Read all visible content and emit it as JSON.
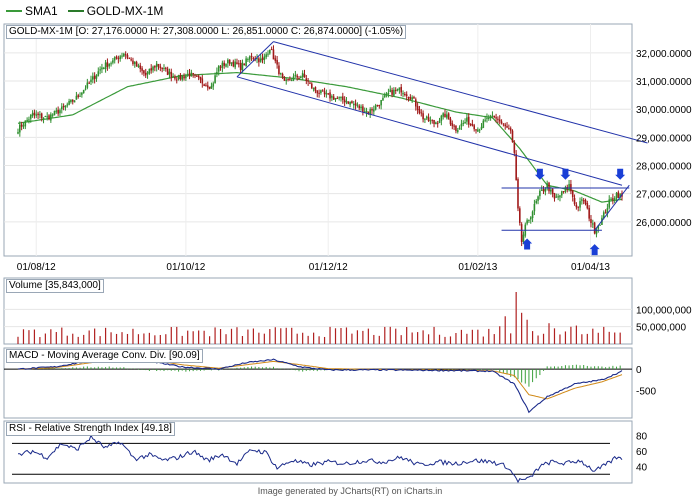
{
  "legend": {
    "items": [
      {
        "label": "SMA1",
        "color": "#3a9a3a"
      },
      {
        "label": "GOLD-MX-1M",
        "color": "#2a7a2a"
      }
    ]
  },
  "panels": {
    "price": {
      "title": "GOLD-MX-1M [O: 27,176.0000  H: 27,308.0000  L: 26,851.0000  C: 26,874.0000] (-1.05%)"
    },
    "volume": {
      "title": "Volume [35,843,000]"
    },
    "macd": {
      "title": "MACD - Moving Average Conv. Div. [90.09]"
    },
    "rsi": {
      "title": "RSI - Relative Strength Index [49.18]"
    }
  },
  "footer": "Image generated by JCharts(RT) on iCharts.in",
  "colors": {
    "up": "#2f8f2f",
    "down": "#a01818",
    "sma": "#3a9a3a",
    "channel": "#2233aa",
    "arrow": "#1a3fd6",
    "volume": "#b02020",
    "macd_line": "#1a2a8a",
    "macd_signal": "#d18a18",
    "macd_hist": "#3aa03a",
    "rsi_line": "#1a2a8a"
  },
  "chart_data": [
    {
      "type": "candlestick",
      "name": "price",
      "x_tick_labels": [
        "01/08/12",
        "01/10/12",
        "01/12/12",
        "01/02/13",
        "01/04/13"
      ],
      "y_tick_labels": [
        "32,000.0000",
        "31,000.0000",
        "30,000.0000",
        "29,000.0000",
        "28,000.0000",
        "27,000.0000",
        "26,000.0000"
      ],
      "ylim": [
        25000,
        32600
      ],
      "anchors_close": [
        [
          0,
          29300
        ],
        [
          8,
          29800
        ],
        [
          16,
          29700
        ],
        [
          24,
          30000
        ],
        [
          32,
          30400
        ],
        [
          40,
          31000
        ],
        [
          46,
          31500
        ],
        [
          52,
          31700
        ],
        [
          58,
          32000
        ],
        [
          64,
          31600
        ],
        [
          70,
          31200
        ],
        [
          76,
          31600
        ],
        [
          82,
          31300
        ],
        [
          88,
          31100
        ],
        [
          94,
          31250
        ],
        [
          100,
          31000
        ],
        [
          106,
          30800
        ],
        [
          110,
          31500
        ],
        [
          116,
          31700
        ],
        [
          122,
          31500
        ],
        [
          128,
          31900
        ],
        [
          134,
          31700
        ],
        [
          138,
          32200
        ],
        [
          142,
          31500
        ],
        [
          146,
          30900
        ],
        [
          150,
          31100
        ],
        [
          156,
          31200
        ],
        [
          162,
          30700
        ],
        [
          168,
          30500
        ],
        [
          174,
          30400
        ],
        [
          180,
          30300
        ],
        [
          186,
          30100
        ],
        [
          192,
          29900
        ],
        [
          198,
          30200
        ],
        [
          204,
          30600
        ],
        [
          210,
          30700
        ],
        [
          216,
          30400
        ],
        [
          222,
          29700
        ],
        [
          228,
          29500
        ],
        [
          234,
          29800
        ],
        [
          240,
          29300
        ],
        [
          246,
          29600
        ],
        [
          252,
          29300
        ],
        [
          258,
          29700
        ],
        [
          264,
          29600
        ],
        [
          270,
          29200
        ],
        [
          272,
          28400
        ],
        [
          274,
          26400
        ],
        [
          276,
          25300
        ],
        [
          278,
          25800
        ],
        [
          282,
          26400
        ],
        [
          286,
          27000
        ],
        [
          290,
          27300
        ],
        [
          294,
          26800
        ],
        [
          298,
          27000
        ],
        [
          302,
          27300
        ],
        [
          306,
          26500
        ],
        [
          310,
          26800
        ],
        [
          314,
          26000
        ],
        [
          316,
          25700
        ],
        [
          320,
          26100
        ],
        [
          324,
          26700
        ],
        [
          328,
          27000
        ],
        [
          331,
          26874
        ]
      ],
      "sma_anchors": [
        [
          0,
          29500
        ],
        [
          30,
          29800
        ],
        [
          60,
          30800
        ],
        [
          90,
          31200
        ],
        [
          120,
          31300
        ],
        [
          150,
          31100
        ],
        [
          180,
          30800
        ],
        [
          210,
          30400
        ],
        [
          240,
          29900
        ],
        [
          260,
          29700
        ],
        [
          275,
          28600
        ],
        [
          290,
          27300
        ],
        [
          305,
          27100
        ],
        [
          320,
          26700
        ],
        [
          331,
          26800
        ]
      ],
      "channel_lines": [
        {
          "from": [
            120,
            31150
          ],
          "to": [
            331,
            27300
          ]
        },
        {
          "from": [
            140,
            32400
          ],
          "to": [
            345,
            28800
          ]
        },
        {
          "from": [
            140,
            32400
          ],
          "to": [
            120,
            31150
          ]
        },
        {
          "from": [
            265,
            27200
          ],
          "to": [
            335,
            27200
          ]
        },
        {
          "from": [
            265,
            25700
          ],
          "to": [
            320,
            25700
          ]
        },
        {
          "from": [
            316,
            25700
          ],
          "to": [
            335,
            27300
          ]
        }
      ],
      "arrows_down": [
        [
          286,
          27600
        ],
        [
          300,
          27600
        ],
        [
          330,
          27600
        ]
      ],
      "arrows_up": [
        [
          279,
          25300
        ],
        [
          316,
          25100
        ]
      ]
    },
    {
      "type": "bar",
      "name": "volume",
      "y_tick_labels": [
        "100,000,000",
        "50,000,000"
      ],
      "ylim": [
        0,
        150000000
      ],
      "highlight": [
        [
          268,
          80000000
        ],
        [
          272,
          120000000
        ],
        [
          274,
          150000000
        ],
        [
          276,
          90000000
        ],
        [
          280,
          70000000
        ],
        [
          290,
          60000000
        ]
      ]
    },
    {
      "type": "line",
      "name": "macd",
      "y_tick_labels": [
        "0",
        "-500"
      ],
      "ylim": [
        -1100,
        400
      ],
      "macd_anchors": [
        [
          0,
          0
        ],
        [
          20,
          50
        ],
        [
          40,
          200
        ],
        [
          55,
          300
        ],
        [
          70,
          200
        ],
        [
          90,
          50
        ],
        [
          110,
          0
        ],
        [
          125,
          150
        ],
        [
          140,
          220
        ],
        [
          155,
          50
        ],
        [
          170,
          -20
        ],
        [
          200,
          -20
        ],
        [
          230,
          -30
        ],
        [
          260,
          -50
        ],
        [
          272,
          -350
        ],
        [
          280,
          -1000
        ],
        [
          290,
          -650
        ],
        [
          305,
          -350
        ],
        [
          320,
          -250
        ],
        [
          331,
          -50
        ]
      ],
      "signal_anchors": [
        [
          0,
          0
        ],
        [
          20,
          30
        ],
        [
          40,
          150
        ],
        [
          55,
          250
        ],
        [
          70,
          230
        ],
        [
          90,
          100
        ],
        [
          110,
          20
        ],
        [
          125,
          100
        ],
        [
          140,
          180
        ],
        [
          155,
          100
        ],
        [
          170,
          10
        ],
        [
          200,
          -10
        ],
        [
          230,
          -20
        ],
        [
          260,
          -40
        ],
        [
          272,
          -150
        ],
        [
          280,
          -600
        ],
        [
          290,
          -700
        ],
        [
          305,
          -450
        ],
        [
          320,
          -300
        ],
        [
          331,
          -130
        ]
      ]
    },
    {
      "type": "line",
      "name": "rsi",
      "y_tick_labels": [
        "80",
        "60",
        "40"
      ],
      "ylim": [
        20,
        90
      ],
      "levels": [
        70,
        30
      ],
      "rsi_anchors": [
        [
          0,
          55
        ],
        [
          8,
          60
        ],
        [
          16,
          52
        ],
        [
          24,
          70
        ],
        [
          32,
          62
        ],
        [
          40,
          78
        ],
        [
          48,
          64
        ],
        [
          56,
          72
        ],
        [
          64,
          50
        ],
        [
          72,
          55
        ],
        [
          80,
          48
        ],
        [
          88,
          52
        ],
        [
          96,
          60
        ],
        [
          104,
          48
        ],
        [
          112,
          56
        ],
        [
          120,
          44
        ],
        [
          128,
          62
        ],
        [
          136,
          58
        ],
        [
          142,
          38
        ],
        [
          150,
          48
        ],
        [
          160,
          42
        ],
        [
          170,
          46
        ],
        [
          180,
          44
        ],
        [
          190,
          48
        ],
        [
          200,
          46
        ],
        [
          210,
          52
        ],
        [
          220,
          42
        ],
        [
          230,
          46
        ],
        [
          240,
          44
        ],
        [
          250,
          48
        ],
        [
          260,
          46
        ],
        [
          268,
          40
        ],
        [
          274,
          22
        ],
        [
          280,
          24
        ],
        [
          286,
          40
        ],
        [
          292,
          46
        ],
        [
          300,
          44
        ],
        [
          308,
          48
        ],
        [
          316,
          34
        ],
        [
          322,
          42
        ],
        [
          328,
          52
        ],
        [
          331,
          49
        ]
      ]
    }
  ]
}
